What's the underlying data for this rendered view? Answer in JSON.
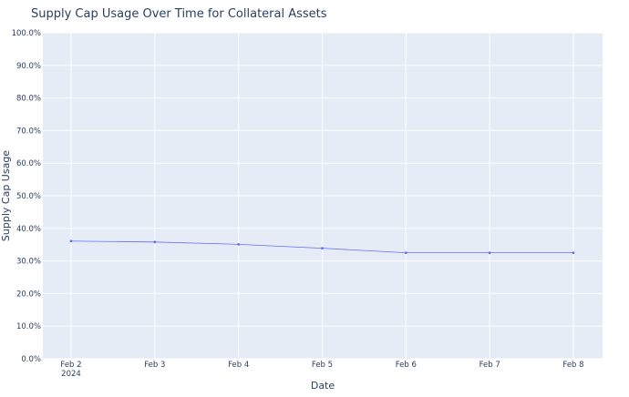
{
  "chart_data": {
    "type": "line",
    "title": "Supply Cap Usage Over Time for Collateral Assets",
    "xlabel": "Date",
    "ylabel": "Supply Cap Usage",
    "x_ticks": [
      {
        "label": "Feb 2",
        "sublabel": "2024"
      },
      {
        "label": "Feb 3",
        "sublabel": ""
      },
      {
        "label": "Feb 4",
        "sublabel": ""
      },
      {
        "label": "Feb 5",
        "sublabel": ""
      },
      {
        "label": "Feb 6",
        "sublabel": ""
      },
      {
        "label": "Feb 7",
        "sublabel": ""
      },
      {
        "label": "Feb 8",
        "sublabel": ""
      }
    ],
    "y_ticks": [
      "0.0%",
      "10.0%",
      "20.0%",
      "30.0%",
      "40.0%",
      "50.0%",
      "60.0%",
      "70.0%",
      "80.0%",
      "90.0%",
      "100.0%"
    ],
    "ylim": [
      0,
      100
    ],
    "grid": true,
    "series": [
      {
        "x": [
          "2024-02-02",
          "2024-02-03",
          "2024-02-04",
          "2024-02-05",
          "2024-02-06",
          "2024-02-07",
          "2024-02-08"
        ],
        "values": [
          36.1,
          35.8,
          35.1,
          33.9,
          32.5,
          32.5,
          32.5
        ],
        "color": "#636efa"
      }
    ],
    "plot_background": "#e5ecf6"
  }
}
